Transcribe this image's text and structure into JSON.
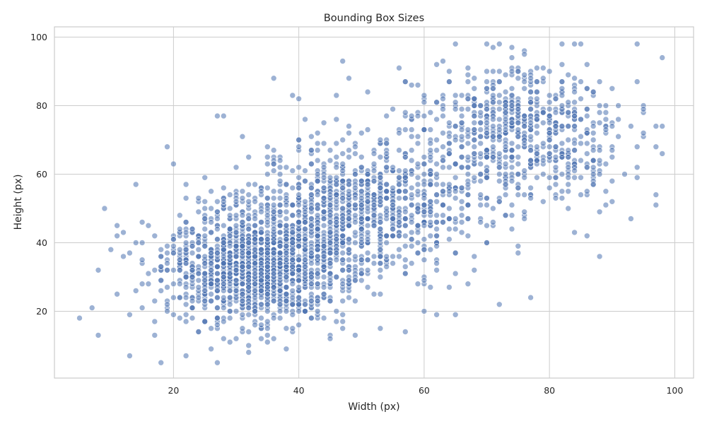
{
  "chart_data": {
    "type": "scatter",
    "title": "Bounding Box Sizes",
    "xlabel": "Width (px)",
    "ylabel": "Height (px)",
    "xlim": [
      1,
      103
    ],
    "ylim": [
      0.5,
      103
    ],
    "xticks": [
      20,
      40,
      60,
      80,
      100
    ],
    "yticks": [
      20,
      40,
      60,
      80,
      100
    ],
    "grid": true,
    "point_color": "#4c72b0",
    "n_points": 3000,
    "cluster_summary": [
      {
        "center_x": 33,
        "center_y": 33,
        "sd_x": 7,
        "sd_y": 8
      },
      {
        "center_x": 50,
        "center_y": 50,
        "sd_x": 9,
        "sd_y": 10
      },
      {
        "center_x": 75,
        "center_y": 72,
        "sd_x": 8,
        "sd_y": 10
      }
    ],
    "sample_points": [
      {
        "x": 5,
        "y": 18
      },
      {
        "x": 7,
        "y": 21
      },
      {
        "x": 8,
        "y": 13
      },
      {
        "x": 8,
        "y": 32
      },
      {
        "x": 10,
        "y": 38
      },
      {
        "x": 11,
        "y": 45
      },
      {
        "x": 14,
        "y": 57
      },
      {
        "x": 18,
        "y": 5
      },
      {
        "x": 19,
        "y": 68
      },
      {
        "x": 22,
        "y": 7
      },
      {
        "x": 27,
        "y": 77
      },
      {
        "x": 28,
        "y": 77
      },
      {
        "x": 36,
        "y": 88
      },
      {
        "x": 40,
        "y": 82
      },
      {
        "x": 47,
        "y": 93
      },
      {
        "x": 56,
        "y": 91
      },
      {
        "x": 62,
        "y": 92
      },
      {
        "x": 74,
        "y": 97
      },
      {
        "x": 82,
        "y": 98
      },
      {
        "x": 94,
        "y": 98
      },
      {
        "x": 98,
        "y": 94
      },
      {
        "x": 97,
        "y": 74
      },
      {
        "x": 98,
        "y": 74
      },
      {
        "x": 95,
        "y": 79
      },
      {
        "x": 93,
        "y": 47
      },
      {
        "x": 88,
        "y": 36
      },
      {
        "x": 88,
        "y": 49
      },
      {
        "x": 84,
        "y": 43
      },
      {
        "x": 77,
        "y": 24
      },
      {
        "x": 72,
        "y": 22
      },
      {
        "x": 65,
        "y": 19
      },
      {
        "x": 62,
        "y": 19
      },
      {
        "x": 60,
        "y": 20
      },
      {
        "x": 57,
        "y": 14
      },
      {
        "x": 53,
        "y": 15
      },
      {
        "x": 45,
        "y": 12
      },
      {
        "x": 38,
        "y": 9
      },
      {
        "x": 32,
        "y": 8
      },
      {
        "x": 26,
        "y": 9
      },
      {
        "x": 13,
        "y": 7
      }
    ]
  }
}
